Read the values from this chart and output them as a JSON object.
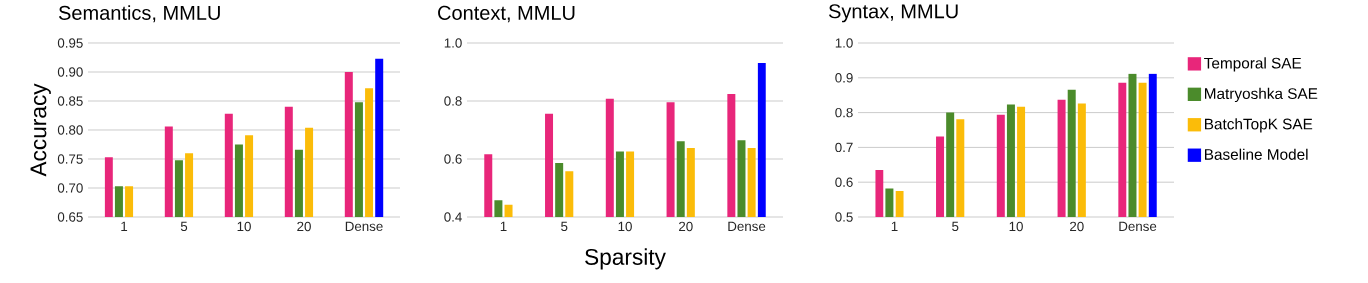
{
  "chart_data": [
    {
      "type": "bar",
      "title": "Semantics, MMLU",
      "ylabel": "Accuracy",
      "categories": [
        "1",
        "5",
        "10",
        "20",
        "Dense"
      ],
      "ylim": [
        0.65,
        0.95
      ],
      "yticks": [
        {
          "value": 0.65,
          "label": "0.65"
        },
        {
          "value": 0.7,
          "label": "0.70"
        },
        {
          "value": 0.75,
          "label": "0.75"
        },
        {
          "value": 0.8,
          "label": "0.80"
        },
        {
          "value": 0.85,
          "label": "0.85"
        },
        {
          "value": 0.9,
          "label": "0.90"
        },
        {
          "value": 0.95,
          "label": "0.95"
        }
      ],
      "grid": "y",
      "series": [
        {
          "color": "#e8267a",
          "values": [
            0.753,
            0.806,
            0.828,
            0.84,
            0.9
          ]
        },
        {
          "color": "#4b8b2b",
          "values": [
            0.703,
            0.748,
            0.775,
            0.766,
            0.848
          ]
        },
        {
          "color": "#fbbc09",
          "values": [
            0.703,
            0.76,
            0.791,
            0.804,
            0.872
          ]
        },
        {
          "color": "#0000ff",
          "values": [
            null,
            null,
            null,
            null,
            0.923
          ]
        }
      ]
    },
    {
      "type": "bar",
      "title": "Context, MMLU",
      "xlabel": "Sparsity",
      "categories": [
        "1",
        "5",
        "10",
        "20",
        "Dense"
      ],
      "ylim": [
        0.4,
        1.0
      ],
      "yticks": [
        0.4,
        0.6,
        0.8,
        {
          "value": 1.0,
          "label": "1.0"
        }
      ],
      "grid": "y",
      "series": [
        {
          "color": "#e8267a",
          "values": [
            0.616,
            0.756,
            0.808,
            0.796,
            0.824
          ]
        },
        {
          "color": "#4b8b2b",
          "values": [
            0.458,
            0.586,
            0.626,
            0.661,
            0.665
          ]
        },
        {
          "color": "#fbbc09",
          "values": [
            0.442,
            0.558,
            0.626,
            0.638,
            0.638
          ]
        },
        {
          "color": "#0000ff",
          "values": [
            null,
            null,
            null,
            null,
            0.931
          ]
        }
      ]
    },
    {
      "type": "bar",
      "title": "Syntax, MMLU",
      "categories": [
        "1",
        "5",
        "10",
        "20",
        "Dense"
      ],
      "ylim": [
        0.5,
        1.0
      ],
      "yticks": [
        0.5,
        0.6,
        0.7,
        0.8,
        0.9,
        {
          "value": 1.0,
          "label": "1.0"
        }
      ],
      "grid": "y",
      "legend": "right",
      "series": [
        {
          "name": "Temporal SAE",
          "color": "#e8267a",
          "values": [
            0.635,
            0.731,
            0.794,
            0.837,
            0.886
          ]
        },
        {
          "name": "Matryoshka SAE",
          "color": "#4b8b2b",
          "values": [
            0.582,
            0.8,
            0.823,
            0.866,
            0.912
          ]
        },
        {
          "name": "BatchTopK SAE",
          "color": "#fbbc09",
          "values": [
            0.575,
            0.781,
            0.817,
            0.826,
            0.886
          ]
        },
        {
          "name": "Baseline Model",
          "color": "#0000ff",
          "values": [
            null,
            null,
            null,
            null,
            0.912
          ]
        }
      ]
    }
  ]
}
